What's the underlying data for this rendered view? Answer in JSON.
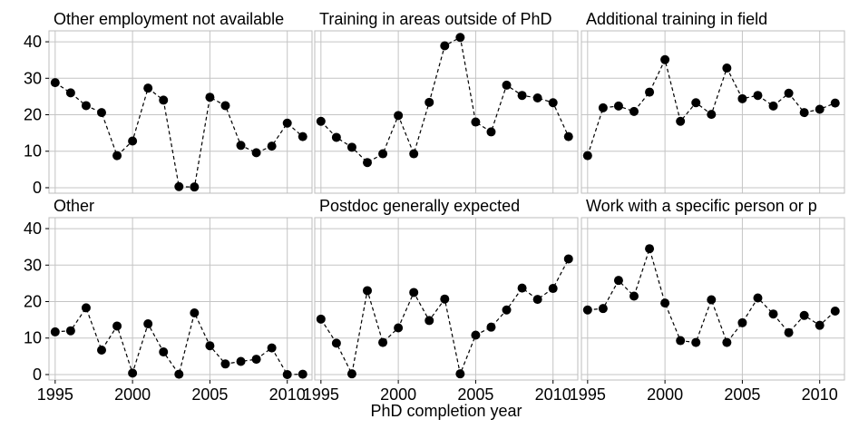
{
  "chart_data": {
    "type": "line",
    "layout": "facets 2x3",
    "xlabel": "PhD completion year",
    "ylabel": "",
    "x": [
      1995,
      1996,
      1997,
      1998,
      1999,
      2000,
      2001,
      2002,
      2003,
      2004,
      2005,
      2006,
      2007,
      2008,
      2009,
      2010,
      2011
    ],
    "xlim": [
      1994.6,
      2011.6
    ],
    "ylim": [
      -1.5,
      43
    ],
    "xticks": [
      1995,
      2000,
      2005,
      2010
    ],
    "yticks": [
      0,
      10,
      20,
      30,
      40
    ],
    "grid": true,
    "line_style": "dashed",
    "marker": "filled-circle",
    "color": "#000000",
    "panels": [
      {
        "title": "Other employment not available",
        "values": [
          28.8,
          26.0,
          22.5,
          20.6,
          8.8,
          12.8,
          27.3,
          24.0,
          0.3,
          0.2,
          24.8,
          22.5,
          11.6,
          9.6,
          11.4,
          17.7,
          14.0
        ]
      },
      {
        "title": "Training in areas outside of PhD",
        "values": [
          18.2,
          13.8,
          11.1,
          6.9,
          9.3,
          19.8,
          9.3,
          23.4,
          38.9,
          41.2,
          18.0,
          15.3,
          28.1,
          25.3,
          24.6,
          23.3,
          14.0
        ]
      },
      {
        "title": "Additional training in field",
        "values": [
          8.8,
          21.9,
          22.4,
          20.9,
          26.2,
          35.1,
          18.2,
          23.3,
          20.1,
          32.8,
          24.4,
          25.3,
          22.4,
          25.9,
          20.6,
          21.5,
          23.2
        ]
      },
      {
        "title": "Other",
        "values": [
          11.7,
          12.0,
          18.3,
          6.7,
          13.3,
          0.4,
          13.9,
          6.2,
          0.1,
          16.9,
          7.9,
          2.9,
          3.6,
          4.2,
          7.3,
          0.0,
          0.1
        ]
      },
      {
        "title": "Postdoc generally expected",
        "values": [
          15.2,
          8.6,
          0.2,
          23.0,
          8.8,
          12.8,
          22.5,
          14.8,
          20.7,
          0.2,
          10.8,
          13.0,
          17.7,
          23.7,
          20.6,
          23.6,
          31.7
        ]
      },
      {
        "title": "Work with a specific person or p",
        "values": [
          17.7,
          18.1,
          25.8,
          21.5,
          34.5,
          19.6,
          9.3,
          8.8,
          20.5,
          8.8,
          14.2,
          21.0,
          16.6,
          11.5,
          16.2,
          13.5,
          17.4
        ]
      }
    ]
  }
}
